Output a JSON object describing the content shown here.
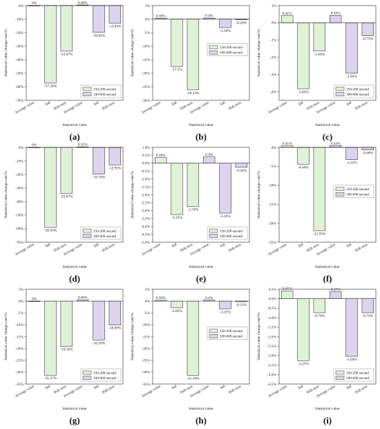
{
  "colors": {
    "green": "#dff2d7",
    "purple": "#ddd3ee",
    "stroke": "#222222"
  },
  "chart_data": [
    {
      "panel_label": "(a)",
      "type": "bar",
      "categories": [
        "Average value",
        "Std",
        "95th max",
        "Average value",
        "Std",
        "95th max"
      ],
      "values": [
        0,
        -57.24,
        -33.67,
        0.46,
        -19.83,
        -13.03
      ],
      "labels": [
        "0%",
        "-57.24%",
        "-33.67%",
        "0.46%",
        "-19.83%",
        "-13.03%"
      ],
      "series": [
        {
          "name": "150-200 second",
          "indices": [
            0,
            1,
            2
          ]
        },
        {
          "name": "100-600 second",
          "indices": [
            3,
            4,
            5
          ]
        }
      ],
      "ylim": [
        -70,
        0
      ],
      "yticks": [
        0,
        -10,
        -20,
        -30,
        -40,
        -50,
        -60,
        -70
      ],
      "ytick_labels": [
        "0%",
        "-10%",
        "-20%",
        "-30%",
        "-40%",
        "-50%",
        "-60%",
        "-70%"
      ],
      "ylabel": "Statistical value change rate/%",
      "xlabel": "Statistical value",
      "legend_position": "lower-right"
    },
    {
      "panel_label": "(b)",
      "type": "bar",
      "categories": [
        "Average value",
        "Std",
        "95th max",
        "Average value",
        "Std",
        "95th max"
      ],
      "values": [
        0.36,
        -17.5,
        -26.12,
        0.4,
        -3.16,
        -0.26
      ],
      "labels": [
        "0.36%",
        "-17.5%",
        "-26.12%",
        "0.4%",
        "-3.16%",
        "-0.26%"
      ],
      "series": [
        {
          "name": "150-200 second",
          "indices": [
            0,
            1,
            2
          ]
        },
        {
          "name": "100-600 second",
          "indices": [
            3,
            4,
            5
          ]
        }
      ],
      "ylim": [
        -30,
        5
      ],
      "yticks": [
        5,
        0,
        -5,
        -10,
        -15,
        -20,
        -25,
        -30
      ],
      "ytick_labels": [
        "5%",
        "0%",
        "-5%",
        "-10%",
        "-15%",
        "-20%",
        "-25%",
        "-30%"
      ],
      "ylabel": "Statistical value change rate/%",
      "xlabel": "Statistical value",
      "legend_position": "center-right"
    },
    {
      "panel_label": "(c)",
      "type": "bar",
      "categories": [
        "Average value",
        "Std",
        "95th max",
        "Average value",
        "Std",
        "95th max"
      ],
      "values": [
        0.41,
        -3.83,
        -1.64,
        0.43,
        -2.93,
        -0.75
      ],
      "labels": [
        "0.41%",
        "-3.83%",
        "-1.64%",
        "0.43%",
        "-2.93%",
        "-0.75%"
      ],
      "series": [
        {
          "name": "150-200 second",
          "indices": [
            0,
            1,
            2
          ]
        },
        {
          "name": "100-600 second",
          "indices": [
            3,
            4,
            5
          ]
        }
      ],
      "ylim": [
        -4.5,
        1
      ],
      "yticks": [
        1,
        0,
        -1,
        -2,
        -3,
        -4
      ],
      "ytick_labels": [
        "1%",
        "0%",
        "-1%",
        "-2%",
        "-3%",
        "-4%"
      ],
      "ylabel": "Statistical value change rate/%",
      "xlabel": "Statistical value",
      "legend_position": "lower-right"
    },
    {
      "panel_label": "(d)",
      "type": "bar",
      "categories": [
        "Average value",
        "Std",
        "95th max",
        "Average value",
        "Std",
        "95th max"
      ],
      "values": [
        0,
        -58.93,
        -33.87,
        0.35,
        -19.74,
        -12.95
      ],
      "labels": [
        "0%",
        "-58.93%",
        "-33.87%",
        "0.35%",
        "-19.74%",
        "-12.95%"
      ],
      "series": [
        {
          "name": "150-200 second",
          "indices": [
            0,
            1,
            2
          ]
        },
        {
          "name": "100-600 second",
          "indices": [
            3,
            4,
            5
          ]
        }
      ],
      "ylim": [
        -70,
        0
      ],
      "yticks": [
        0,
        -10,
        -20,
        -30,
        -40,
        -50,
        -60,
        -70
      ],
      "ytick_labels": [
        "0%",
        "-10%",
        "-20%",
        "-30%",
        "-40%",
        "-50%",
        "-60%",
        "-70%"
      ],
      "ylabel": "Statistical value change rate/%",
      "xlabel": "Statistical value",
      "legend_position": "lower-right"
    },
    {
      "panel_label": "(e)",
      "type": "bar",
      "categories": [
        "Average value",
        "Std",
        "95th max",
        "Average value",
        "Std",
        "95th max"
      ],
      "values": [
        0.36,
        -3.25,
        -2.74,
        0.4,
        -3.16,
        -0.26
      ],
      "labels": [
        "0.36%",
        "-3.25%",
        "-2.74%",
        "0.4%",
        "-3.16%",
        "-0.26%"
      ],
      "series": [
        {
          "name": "150-200 second",
          "indices": [
            0,
            1,
            2
          ]
        },
        {
          "name": "100-600 second",
          "indices": [
            3,
            4,
            5
          ]
        }
      ],
      "ylim": [
        -5,
        1
      ],
      "yticks": [
        1,
        0.5,
        0,
        -0.5,
        -1,
        -1.5,
        -2,
        -2.5,
        -3,
        -3.5,
        -4,
        -4.5,
        -5
      ],
      "ytick_labels": [
        "1.0%",
        "0.5%",
        "0.0%",
        "-0.5%",
        "-1.0%",
        "-1.5%",
        "-2.0%",
        "-2.5%",
        "-3.0%",
        "-3.5%",
        "-4.0%",
        "-4.5%",
        "-5.0%"
      ],
      "ylabel": "Statistical value change rate/%",
      "xlabel": "Statistical value",
      "legend_position": "lower-right"
    },
    {
      "panel_label": "(f)",
      "type": "bar",
      "categories": [
        "Average value",
        "Std",
        "95th max",
        "Average value",
        "Std",
        "95th max"
      ],
      "values": [
        0.41,
        -4.44,
        -21.95,
        0.43,
        -3.22,
        -0.68
      ],
      "labels": [
        "0.41%",
        "-4.44%",
        "-21.95%",
        "0.43%",
        "-3.22%",
        "-0.68%"
      ],
      "series": [
        {
          "name": "150-200 second",
          "indices": [
            0,
            1,
            2
          ]
        },
        {
          "name": "100-600 second",
          "indices": [
            3,
            4,
            5
          ]
        }
      ],
      "ylim": [
        -25,
        0
      ],
      "yticks": [
        0,
        -5,
        -10,
        -15,
        -20,
        -25
      ],
      "ytick_labels": [
        "0%",
        "-5%",
        "-10%",
        "-15%",
        "-20%",
        "-25%"
      ],
      "ylabel": "Statistical value change rate/%",
      "xlabel": "Statistical value",
      "legend_position": "center-right"
    },
    {
      "panel_label": "(g)",
      "type": "bar",
      "categories": [
        "Average value",
        "Std",
        "95th max",
        "Average value",
        "Std",
        "95th max"
      ],
      "values": [
        0,
        -31.27,
        -19.16,
        0.46,
        -16.39,
        -10.09
      ],
      "labels": [
        "0%",
        "-31.27%",
        "-19.16%",
        "0.46%",
        "-16.39%",
        "-10.09%"
      ],
      "series": [
        {
          "name": "150-200 second",
          "indices": [
            0,
            1,
            2
          ]
        },
        {
          "name": "100-600 second",
          "indices": [
            3,
            4,
            5
          ]
        }
      ],
      "ylim": [
        -35,
        5
      ],
      "yticks": [
        5,
        0,
        -5,
        -10,
        -15,
        -20,
        -25,
        -30,
        -35
      ],
      "ytick_labels": [
        "5%",
        "0%",
        "-5%",
        "-10%",
        "-15%",
        "-20%",
        "-25%",
        "-30%",
        "-35%"
      ],
      "ylabel": "Statistical value change rate/%",
      "xlabel": "Statistical value",
      "legend_position": "lower-right"
    },
    {
      "panel_label": "(h)",
      "type": "bar",
      "categories": [
        "Average value",
        "Std",
        "95th max",
        "Average value",
        "Std",
        "95th max"
      ],
      "values": [
        0.36,
        -2.85,
        -31.34,
        0.4,
        -3.25,
        -0.23
      ],
      "labels": [
        "0.36%",
        "-2.85%",
        "-31.34%",
        "0.4%",
        "-3.25%",
        "-0.23%"
      ],
      "series": [
        {
          "name": "150-200 second",
          "indices": [
            0,
            1,
            2
          ]
        },
        {
          "name": "100-600 second",
          "indices": [
            3,
            4,
            5
          ]
        }
      ],
      "ylim": [
        -35,
        5
      ],
      "yticks": [
        5,
        0,
        -5,
        -10,
        -15,
        -20,
        -25,
        -30,
        -35
      ],
      "ytick_labels": [
        "5%",
        "0%",
        "-5%",
        "-10%",
        "-15%",
        "-20%",
        "-25%",
        "-30%",
        "-35%"
      ],
      "ylabel": "Statistical value change rate/%",
      "xlabel": "Statistical value",
      "legend_position": "center-right"
    },
    {
      "panel_label": "(i)",
      "type": "bar",
      "categories": [
        "Average value",
        "Std",
        "95th max",
        "Average value",
        "Std",
        "95th max"
      ],
      "values": [
        0.41,
        -3.27,
        -0.74,
        0.37,
        -3.04,
        -0.74
      ],
      "labels": [
        "0.41%",
        "-3.27%",
        "-0.74%",
        "0.37%",
        "-3.04%",
        "-0.74%"
      ],
      "series": [
        {
          "name": "150-200 second",
          "indices": [
            0,
            1,
            2
          ]
        },
        {
          "name": "100-600 second",
          "indices": [
            3,
            4,
            5
          ]
        }
      ],
      "ylim": [
        -4.5,
        0.5
      ],
      "yticks": [
        0.5,
        0,
        -0.5,
        -1,
        -1.5,
        -2,
        -2.5,
        -3,
        -3.5,
        -4,
        -4.5
      ],
      "ytick_labels": [
        "0.5%",
        "0.0%",
        "-0.5%",
        "-1.0%",
        "-1.5%",
        "-2.0%",
        "-2.5%",
        "-3.0%",
        "-3.5%",
        "-4.0%",
        "-4.5%"
      ],
      "ylabel": "Statistical value change rate/%",
      "xlabel": "Statistical value",
      "legend_position": "lower-right"
    }
  ]
}
